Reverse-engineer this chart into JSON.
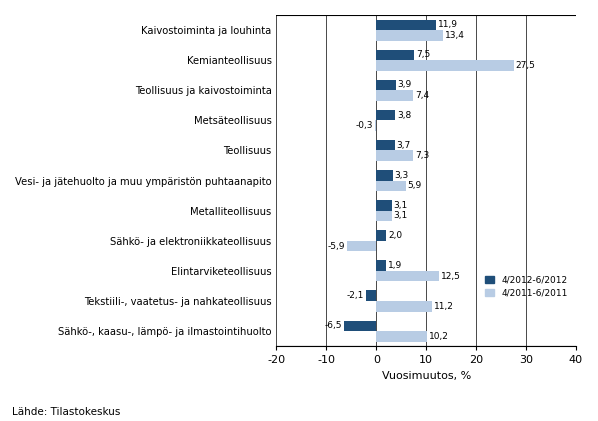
{
  "categories": [
    "Sähkö-, kaasu-, lämpö- ja ilmastointihuolto",
    "Tekstiili-, vaatetus- ja nahkateollisuus",
    "Elintarviketeollisuus",
    "Sähkö- ja elektroniikkateollisuus",
    "Metalliteollisuus",
    "Vesi- ja jätehuolto ja muu ympäristön puhtaanapito",
    "Teollisuus",
    "Metsäteollisuus",
    "Teollisuus ja kaivostoiminta",
    "Kemianteollisuus",
    "Kaivostoiminta ja louhinta"
  ],
  "series1_values": [
    -6.5,
    -2.1,
    1.9,
    2.0,
    3.1,
    3.3,
    3.7,
    3.8,
    3.9,
    7.5,
    11.9
  ],
  "series2_values": [
    10.2,
    11.2,
    12.5,
    -5.9,
    3.1,
    5.9,
    7.3,
    -0.3,
    7.4,
    27.5,
    13.4
  ],
  "series1_label": "4/2012-6/2012",
  "series2_label": "4/2011-6/2011",
  "series1_color": "#1f4e79",
  "series2_color": "#b8cce4",
  "xlabel": "Vuosimuutos, %",
  "xlim": [
    -20,
    40
  ],
  "xticks": [
    -20,
    -10,
    0,
    10,
    20,
    30,
    40
  ],
  "source_text": "Lähde: Tilastokeskus",
  "bar_height": 0.35,
  "background_color": "#ffffff"
}
